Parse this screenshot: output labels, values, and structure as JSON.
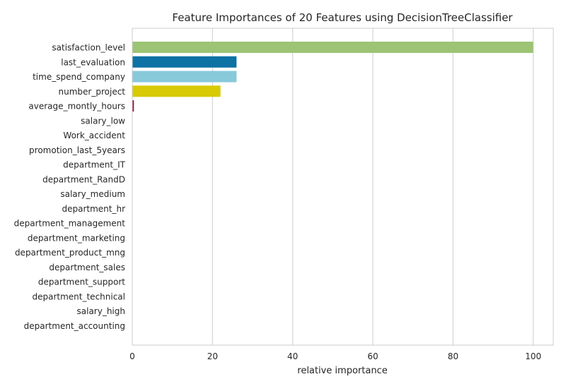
{
  "chart_data": {
    "type": "bar",
    "orientation": "horizontal",
    "title": "Feature Importances of 20 Features using DecisionTreeClassifier",
    "xlabel": "relative importance",
    "ylabel": "",
    "xlim": [
      0,
      105
    ],
    "xticks": [
      0,
      20,
      40,
      60,
      80,
      100
    ],
    "grid": true,
    "legend": "none",
    "categories": [
      "satisfaction_level",
      "last_evaluation",
      "time_spend_company",
      "number_project",
      "average_montly_hours",
      "salary_low",
      "Work_accident",
      "promotion_last_5years",
      "department_IT",
      "department_RandD",
      "salary_medium",
      "department_hr",
      "department_management",
      "department_marketing",
      "department_product_mng",
      "department_sales",
      "department_support",
      "department_technical",
      "salary_high",
      "department_accounting"
    ],
    "values": [
      100,
      26,
      26,
      22,
      0.4,
      0,
      0,
      0,
      0,
      0,
      0,
      0,
      0,
      0,
      0,
      0,
      0,
      0,
      0,
      0
    ],
    "colors": [
      "#9cc474",
      "#0e72a5",
      "#88c9da",
      "#d8ca04",
      "#a10d4b",
      "#9cc474",
      "#0e72a5",
      "#88c9da",
      "#d8ca04",
      "#a10d4b",
      "#9cc474",
      "#0e72a5",
      "#88c9da",
      "#d8ca04",
      "#a10d4b",
      "#9cc474",
      "#0e72a5",
      "#88c9da",
      "#d8ca04",
      "#a10d4b"
    ],
    "axes_color": "#cccccc",
    "grid_color": "#d4d4d4"
  }
}
